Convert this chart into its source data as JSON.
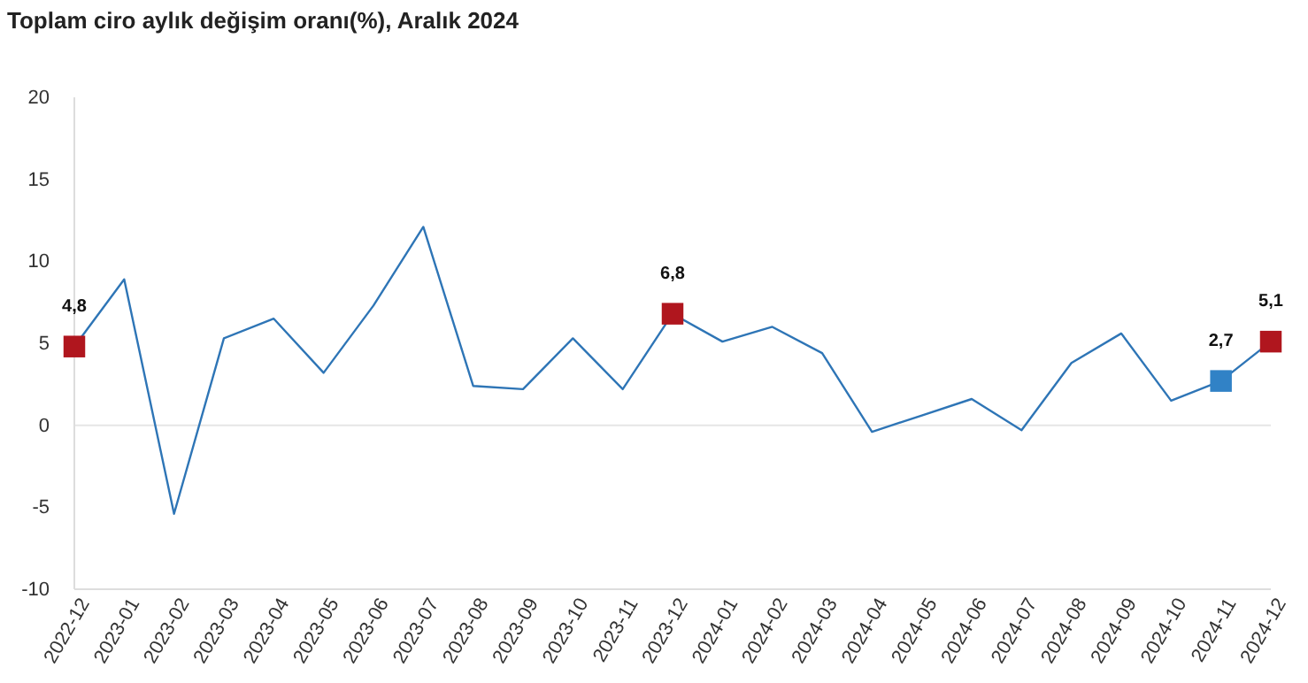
{
  "chart_data": {
    "type": "line",
    "title": "Toplam ciro aylık değişim oranı(%), Aralık 2024",
    "categories": [
      "2022-12",
      "2023-01",
      "2023-02",
      "2023-03",
      "2023-04",
      "2023-05",
      "2023-06",
      "2023-07",
      "2023-08",
      "2023-09",
      "2023-10",
      "2023-11",
      "2023-12",
      "2024-01",
      "2024-02",
      "2024-03",
      "2024-04",
      "2024-05",
      "2024-06",
      "2024-07",
      "2024-08",
      "2024-09",
      "2024-10",
      "2024-11",
      "2024-12"
    ],
    "series": [
      {
        "color": "#2e75b6",
        "marker": "none",
        "values": [
          4.8,
          8.9,
          -5.4,
          5.3,
          6.5,
          3.2,
          7.3,
          12.1,
          2.4,
          2.2,
          5.3,
          2.2,
          6.8,
          5.1,
          6.0,
          4.4,
          -0.4,
          0.6,
          1.6,
          -0.3,
          3.8,
          5.6,
          1.5,
          2.7,
          5.1
        ]
      },
      {
        "type": "scatter",
        "marker": "square",
        "values": [
          4.8,
          null,
          null,
          null,
          null,
          null,
          null,
          null,
          null,
          null,
          null,
          null,
          6.8,
          null,
          null,
          null,
          null,
          null,
          null,
          null,
          null,
          null,
          null,
          2.7,
          5.1
        ],
        "colors": [
          "#b0161e",
          null,
          null,
          null,
          null,
          null,
          null,
          null,
          null,
          null,
          null,
          null,
          "#b0161e",
          null,
          null,
          null,
          null,
          null,
          null,
          null,
          null,
          null,
          null,
          "#3182c6",
          "#b0161e"
        ],
        "value_labels": [
          "4,8",
          null,
          null,
          null,
          null,
          null,
          null,
          null,
          null,
          null,
          null,
          null,
          "6,8",
          null,
          null,
          null,
          null,
          null,
          null,
          null,
          null,
          null,
          null,
          "2,7",
          "5,1"
        ]
      }
    ],
    "ylim": [
      -10,
      20
    ],
    "yticks": [
      -10,
      -5,
      0,
      5,
      10,
      15,
      20
    ],
    "grid": false,
    "ref_lines": [
      {
        "axis": "y",
        "value": 0,
        "color": "#e6e6e6"
      }
    ]
  }
}
